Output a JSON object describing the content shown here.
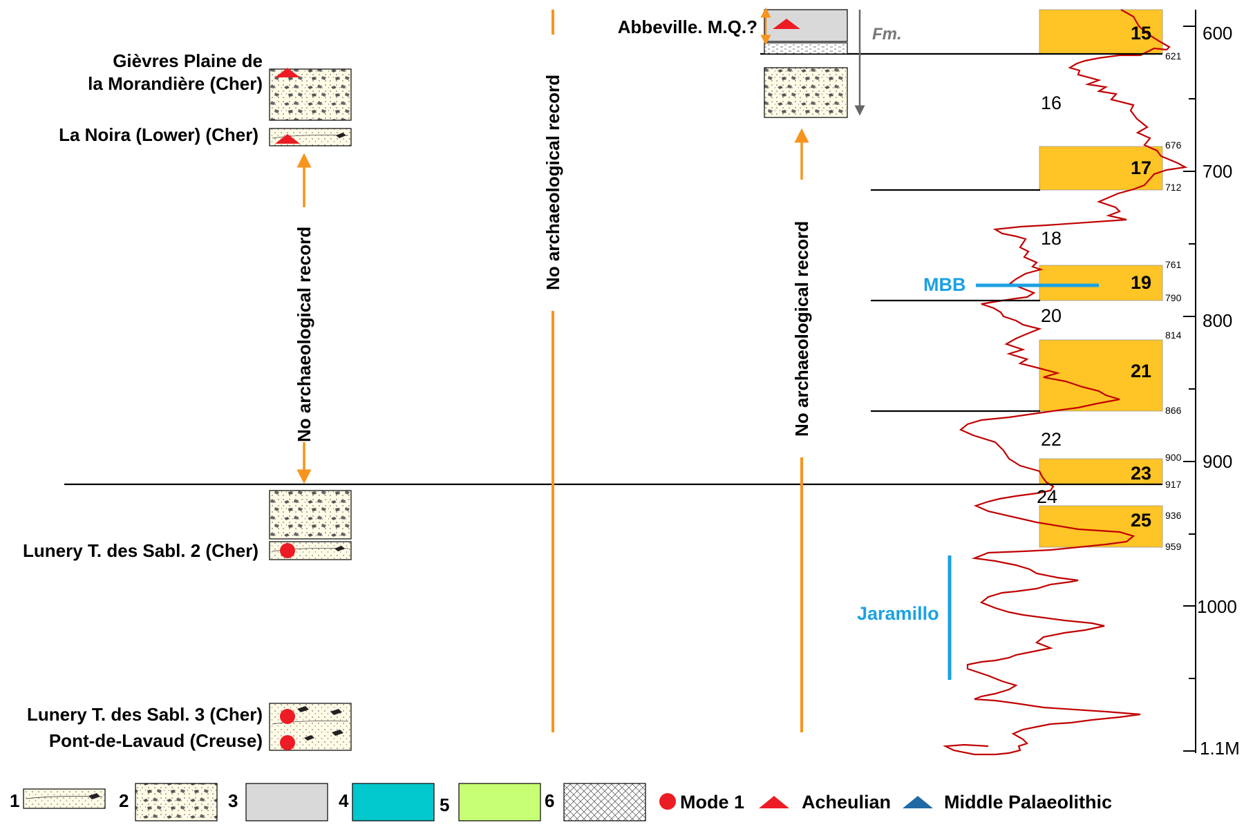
{
  "sites": {
    "gievres_line1": "Gièvres Plaine de",
    "gievres_line2": "la Morandière (Cher)",
    "la_noira": "La Noira (Lower) (Cher)",
    "lunery2": "Lunery T. des Sabl. 2 (Cher)",
    "lunery3": "Lunery T. des Sabl. 3 (Cher)",
    "pont_de_lavaud": "Pont-de-Lavaud (Creuse)",
    "abbeville": "Abbeville. M.Q.?",
    "fm": "Fm."
  },
  "no_record_label": "No archaeological record",
  "mis_labels": {
    "s15": "15",
    "s16": "16",
    "s17": "17",
    "s18": "18",
    "s19": "19",
    "s20": "20",
    "s21": "21",
    "s22": "22",
    "s23": "23",
    "s24": "24",
    "s25": "25"
  },
  "boundaries": {
    "b621": "621",
    "b676": "676",
    "b712": "712",
    "b761": "761",
    "b790": "790",
    "b814": "814",
    "b866": "866",
    "b900": "900",
    "b917": "917",
    "b936": "936",
    "b959": "959"
  },
  "age_axis": {
    "a600": "600",
    "a700": "700",
    "a800": "800",
    "a900": "900",
    "a1000": "1000",
    "a1100": "1.1M"
  },
  "events": {
    "mbb": "MBB",
    "jaramillo": "Jaramillo"
  },
  "legend": {
    "n1": "1",
    "n2": "2",
    "n3": "3",
    "n4": "4",
    "n5": "5",
    "n6": "6",
    "mode1": "Mode 1",
    "acheulian": "Acheulian",
    "middle_palaeolithic": "Middle Palaeolithic"
  },
  "colors": {
    "orange": "#F7941D",
    "red": "#ED1C24",
    "gold": "#FFC425",
    "blue": "#1BA1E2",
    "dark_blue": "#1F6AA5",
    "cyan_fill": "#00C8CC",
    "green_fill": "#C6FF73",
    "grey_fill": "#D9D9D9",
    "sand_fill": "#FFFBE6",
    "curve": "#C00000"
  }
}
